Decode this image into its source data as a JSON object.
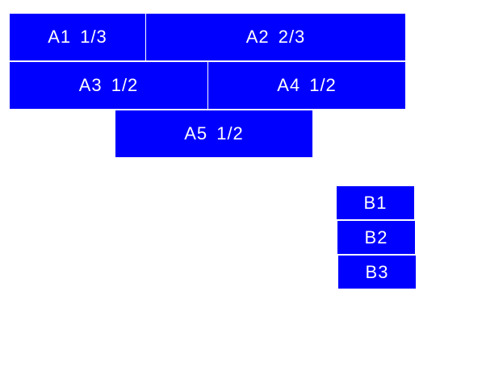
{
  "colors": {
    "box": "#0000ff",
    "text": "#ffffff"
  },
  "groupA": [
    {
      "label": "A1 1/3"
    },
    {
      "label": "A2 2/3"
    },
    {
      "label": "A3 1/2"
    },
    {
      "label": "A4 1/2"
    },
    {
      "label": "A5 1/2"
    }
  ],
  "groupB": [
    {
      "label": "B1"
    },
    {
      "label": "B2"
    },
    {
      "label": "B3"
    }
  ]
}
